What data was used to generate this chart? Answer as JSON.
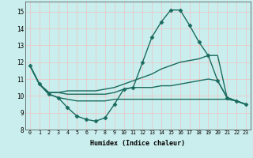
{
  "xlabel": "Humidex (Indice chaleur)",
  "ylabel": "",
  "xlim": [
    -0.5,
    23.5
  ],
  "ylim": [
    8,
    15.6
  ],
  "yticks": [
    8,
    9,
    10,
    11,
    12,
    13,
    14,
    15
  ],
  "xticks": [
    0,
    1,
    2,
    3,
    4,
    5,
    6,
    7,
    8,
    9,
    10,
    11,
    12,
    13,
    14,
    15,
    16,
    17,
    18,
    19,
    20,
    21,
    22,
    23
  ],
  "bg_color": "#caeeed",
  "grid_color": "#e8c8c8",
  "line_color": "#1a6b5e",
  "series": [
    {
      "x": [
        0,
        1,
        2,
        3,
        4,
        5,
        6,
        7,
        8,
        9,
        10,
        11,
        12,
        13,
        14,
        15,
        16,
        17,
        18,
        19,
        20,
        21,
        22,
        23
      ],
      "y": [
        11.8,
        10.7,
        10.1,
        9.9,
        9.3,
        8.8,
        8.6,
        8.5,
        8.7,
        9.5,
        10.4,
        10.5,
        12.0,
        13.5,
        14.4,
        15.1,
        15.1,
        14.2,
        13.2,
        12.4,
        10.9,
        9.9,
        9.7,
        9.5
      ],
      "marker": "D",
      "markersize": 2.5,
      "linewidth": 1.0,
      "with_markers": true
    },
    {
      "x": [
        0,
        1,
        2,
        3,
        4,
        5,
        6,
        7,
        8,
        9,
        10,
        11,
        12,
        13,
        14,
        15,
        16,
        17,
        18,
        19,
        20,
        21,
        22,
        23
      ],
      "y": [
        11.8,
        10.7,
        10.2,
        10.2,
        10.3,
        10.3,
        10.3,
        10.3,
        10.4,
        10.5,
        10.7,
        10.9,
        11.1,
        11.3,
        11.6,
        11.8,
        12.0,
        12.1,
        12.2,
        12.4,
        12.4,
        9.9,
        9.7,
        9.5
      ],
      "marker": null,
      "markersize": 0,
      "linewidth": 1.0,
      "with_markers": false
    },
    {
      "x": [
        0,
        1,
        2,
        3,
        4,
        5,
        6,
        7,
        8,
        9,
        10,
        11,
        12,
        13,
        14,
        15,
        16,
        17,
        18,
        19,
        20,
        21,
        22,
        23
      ],
      "y": [
        11.8,
        10.7,
        10.2,
        10.2,
        10.1,
        10.1,
        10.1,
        10.1,
        10.1,
        10.2,
        10.4,
        10.5,
        10.5,
        10.5,
        10.6,
        10.6,
        10.7,
        10.8,
        10.9,
        11.0,
        10.9,
        9.9,
        9.7,
        9.5
      ],
      "marker": null,
      "markersize": 0,
      "linewidth": 1.0,
      "with_markers": false
    },
    {
      "x": [
        0,
        1,
        2,
        3,
        4,
        5,
        6,
        7,
        8,
        9,
        10,
        11,
        12,
        13,
        14,
        15,
        16,
        17,
        18,
        19,
        20,
        21,
        22,
        23
      ],
      "y": [
        11.8,
        10.7,
        10.1,
        9.9,
        9.8,
        9.7,
        9.7,
        9.7,
        9.7,
        9.8,
        9.8,
        9.8,
        9.8,
        9.8,
        9.8,
        9.8,
        9.8,
        9.8,
        9.8,
        9.8,
        9.8,
        9.8,
        9.7,
        9.5
      ],
      "marker": null,
      "markersize": 0,
      "linewidth": 1.0,
      "with_markers": false
    }
  ]
}
